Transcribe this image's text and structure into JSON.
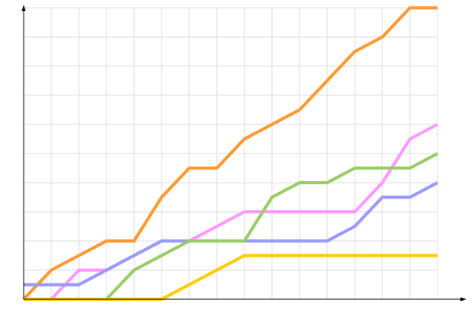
{
  "chart_data": {
    "type": "line",
    "title": "",
    "xlabel": "",
    "ylabel": "",
    "x": [
      0,
      1,
      2,
      3,
      4,
      5,
      6,
      7,
      8,
      9,
      10,
      11,
      12,
      13,
      14,
      15
    ],
    "xlim": [
      0,
      15
    ],
    "ylim": [
      0,
      10
    ],
    "grid": true,
    "legend": "none",
    "series": [
      {
        "color": "#ff9933",
        "values": [
          0,
          1,
          1.5,
          2,
          2,
          3.5,
          4.5,
          4.5,
          5.5,
          6,
          6.5,
          7.5,
          8.5,
          9,
          10,
          10
        ]
      },
      {
        "color": "#ff99ff",
        "values": [
          0,
          0,
          1,
          1,
          1.5,
          2,
          2,
          2.5,
          3,
          3,
          3,
          3,
          3,
          4,
          5.5,
          6
        ]
      },
      {
        "color": "#9999ff",
        "values": [
          0.5,
          0.5,
          0.5,
          1,
          1.5,
          2,
          2,
          2,
          2,
          2,
          2,
          2,
          2.5,
          3.5,
          3.5,
          4
        ]
      },
      {
        "color": "#99cc66",
        "values": [
          0,
          0,
          0,
          0,
          1,
          1.5,
          2,
          2,
          2,
          3.5,
          4,
          4,
          4.5,
          4.5,
          4.5,
          5
        ]
      },
      {
        "color": "#ffcc00",
        "values": [
          0,
          0,
          0,
          0,
          0,
          0,
          0.5,
          1,
          1.5,
          1.5,
          1.5,
          1.5,
          1.5,
          1.5,
          1.5,
          1.5
        ]
      }
    ]
  }
}
